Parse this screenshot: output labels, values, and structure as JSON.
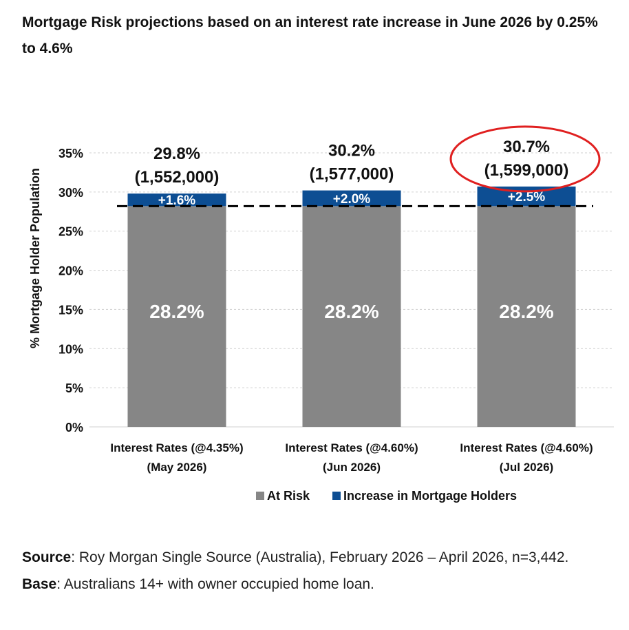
{
  "title": "Mortgage Risk projections based on an interest rate increase in June 2026 by 0.25% to 4.6%",
  "chart_data": {
    "type": "bar",
    "stacked": true,
    "ylabel": "% Mortgage Holder Population",
    "ylim": [
      0,
      35
    ],
    "yticks": [
      0,
      5,
      10,
      15,
      20,
      25,
      30,
      35
    ],
    "ytick_labels": [
      "0%",
      "5%",
      "10%",
      "15%",
      "20%",
      "25%",
      "30%",
      "35%"
    ],
    "grid": true,
    "categories": [
      [
        "Interest Rates    (@4.35%)",
        "(May 2026)"
      ],
      [
        "Interest Rates    (@4.60%)",
        "(Jun 2026)"
      ],
      [
        "Interest Rates    (@4.60%)",
        "(Jul 2026)"
      ]
    ],
    "series": [
      {
        "name": "At Risk",
        "color": "#868686",
        "values": [
          28.2,
          28.2,
          28.2
        ],
        "labels": [
          "28.2%",
          "28.2%",
          "28.2%"
        ]
      },
      {
        "name": "Increase in Mortgage Holders",
        "color": "#0d4e93",
        "values": [
          1.6,
          2.0,
          2.5
        ],
        "labels": [
          "+1.6%",
          "+2.0%",
          "+2.5%"
        ]
      }
    ],
    "totals": [
      {
        "pct": "29.8%",
        "count": "(1,552,000)"
      },
      {
        "pct": "30.2%",
        "count": "(1,577,000)"
      },
      {
        "pct": "30.7%",
        "count": "(1,599,000)"
      }
    ],
    "reference_line": {
      "value": 28.2,
      "style": "dashed"
    },
    "highlight_index": 2,
    "highlight_color": "#e02020",
    "legend_position": "bottom"
  },
  "source": {
    "label": "Source",
    "text": ": Roy Morgan Single Source (Australia), February 2026 – April 2026, n=3,442."
  },
  "base": {
    "label": "Base",
    "text": ": Australians 14+ with owner occupied home loan."
  }
}
